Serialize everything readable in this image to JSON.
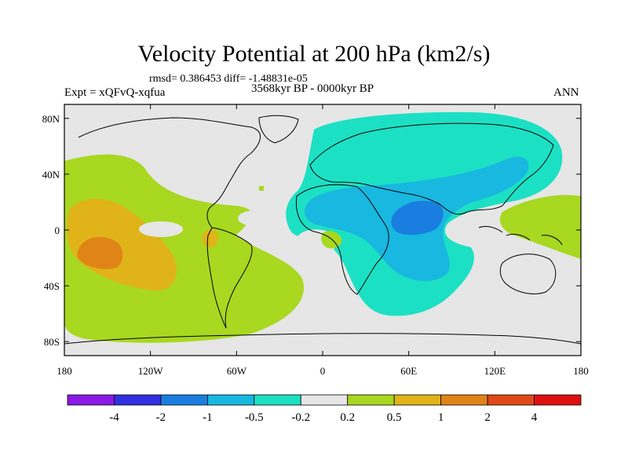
{
  "title": "Velocity Potential at 200 hPa (km2/s)",
  "stats": "rmsd= 0.386453 diff= -1.48831e-05",
  "experiment": "Expt = xQFvQ-xqfua",
  "period": "3568kyr BP - 0000kyr BP",
  "season": "ANN",
  "map": {
    "background_color": "#e6e6e6",
    "x_ticks": [
      {
        "value": -180,
        "label": "180"
      },
      {
        "value": -120,
        "label": "120W"
      },
      {
        "value": -60,
        "label": "60W"
      },
      {
        "value": 0,
        "label": "0"
      },
      {
        "value": 60,
        "label": "60E"
      },
      {
        "value": 120,
        "label": "120E"
      },
      {
        "value": 180,
        "label": "180"
      }
    ],
    "y_ticks": [
      {
        "value": 80,
        "label": "80N"
      },
      {
        "value": 40,
        "label": "40N"
      },
      {
        "value": 0,
        "label": "0"
      },
      {
        "value": -40,
        "label": "40S"
      },
      {
        "value": -80,
        "label": "80S"
      }
    ]
  },
  "colorbar": {
    "colors": [
      "#8b1ae6",
      "#3230e0",
      "#1a7ee0",
      "#18b8e0",
      "#1ce0c4",
      "#e6e6e6",
      "#a8d820",
      "#e0b418",
      "#e08418",
      "#e04818",
      "#e01010"
    ],
    "labels": [
      "-4",
      "-2",
      "-1",
      "-0.5",
      "-0.2",
      "0.2",
      "0.5",
      "1",
      "2",
      "4"
    ]
  }
}
